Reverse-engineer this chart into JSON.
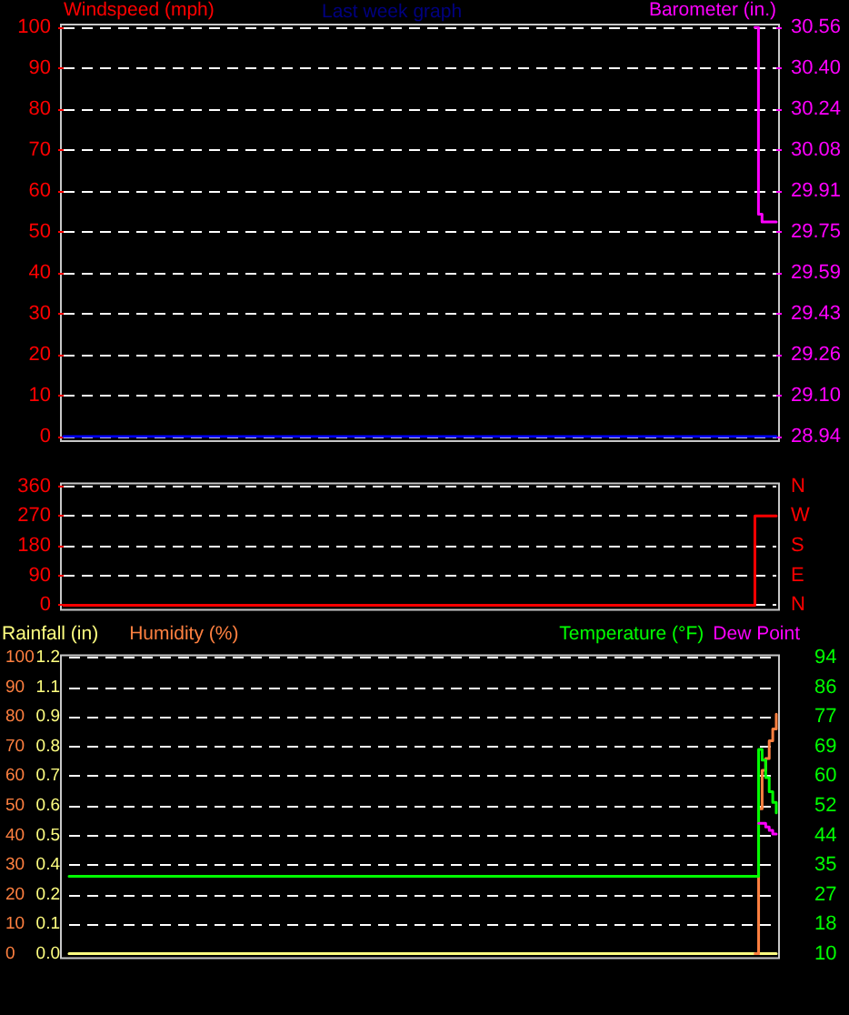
{
  "chart_data": [
    {
      "type": "step",
      "title": "Last week graph",
      "ylabel": "Windspeed (mph)",
      "y2label": "Barometer (in.)",
      "grid": "y",
      "tick_labels": "y",
      "ylim": [
        0,
        100
      ],
      "yticks": [
        0,
        10,
        20,
        30,
        40,
        50,
        60,
        70,
        80,
        90,
        100
      ],
      "y2lim": [
        28.94,
        30.56
      ],
      "y2ticks": [
        28.94,
        {
          "value": 29.102,
          "label": "29.10"
        },
        {
          "value": 29.264,
          "label": "29.26"
        },
        {
          "value": 29.426,
          "label": "29.43"
        },
        {
          "value": 29.588,
          "label": "29.59"
        },
        29.75,
        {
          "value": 29.912,
          "label": "29.91"
        },
        {
          "value": 30.075,
          "label": "30.08"
        },
        {
          "value": 30.236,
          "label": "30.24"
        },
        {
          "value": 30.398,
          "label": "30.40"
        },
        30.56
      ],
      "categories": [
        null,
        null,
        null,
        null,
        null,
        null,
        null,
        null,
        null,
        null,
        null,
        null,
        null,
        null,
        null,
        null,
        null,
        null,
        null,
        null,
        null,
        null,
        null,
        null,
        null,
        null,
        null,
        null,
        null,
        null,
        null,
        null,
        null,
        null,
        null,
        null,
        null,
        null,
        null,
        null,
        null,
        null,
        null,
        null,
        null,
        null,
        null,
        null,
        null,
        null,
        null,
        null,
        null,
        null,
        null,
        null,
        null,
        null,
        null,
        null,
        null,
        null,
        null,
        null,
        null,
        null,
        null,
        null,
        null,
        null,
        null,
        null,
        null,
        null,
        null,
        null,
        null,
        null,
        null,
        null,
        null,
        null,
        null,
        null,
        null,
        null,
        null,
        null,
        null,
        null,
        null,
        null,
        null,
        null,
        null,
        null,
        null,
        null,
        null,
        null,
        null,
        null,
        null,
        null,
        null,
        null,
        null,
        null,
        null,
        null,
        null,
        null,
        null,
        null,
        null,
        null,
        null,
        null,
        null,
        null,
        null,
        null,
        null,
        null,
        null,
        null,
        null,
        null,
        null,
        null,
        null,
        null,
        null,
        null,
        null,
        null,
        null,
        null,
        null,
        null,
        null,
        null,
        null,
        null,
        null,
        null,
        null,
        null,
        null,
        null,
        null,
        null,
        null,
        null,
        null,
        null,
        null,
        null,
        null,
        null,
        null,
        null,
        null,
        null,
        null,
        null,
        null,
        null,
        null,
        null,
        null,
        null,
        null,
        null,
        null,
        null,
        null,
        null,
        null,
        null,
        null,
        null,
        null,
        null,
        null,
        null,
        null,
        null,
        null,
        null,
        null,
        null,
        null,
        null,
        null,
        null,
        null,
        null,
        null,
        null,
        null
      ],
      "series": [
        {
          "color": "#0000ff",
          "values": [
            0,
            0,
            0,
            0,
            0,
            0,
            0,
            0,
            0,
            0,
            0,
            0,
            0,
            0,
            0,
            0,
            0,
            0,
            0,
            0,
            0,
            0,
            0,
            0,
            0,
            0,
            0,
            0,
            0,
            0,
            0,
            0,
            0,
            0,
            0,
            0,
            0,
            0,
            0,
            0,
            0,
            0,
            0,
            0,
            0,
            0,
            0,
            0,
            0,
            0,
            0,
            0,
            0,
            0,
            0,
            0,
            0,
            0,
            0,
            0,
            0,
            0,
            0,
            0,
            0,
            0,
            0,
            0,
            0,
            0,
            0,
            0,
            0,
            0,
            0,
            0,
            0,
            0,
            0,
            0,
            0,
            0,
            0,
            0,
            0,
            0,
            0,
            0,
            0,
            0,
            0,
            0,
            0,
            0,
            0,
            0,
            0,
            0,
            0,
            0,
            0,
            0,
            0,
            0,
            0,
            0,
            0,
            0,
            0,
            0,
            0,
            0,
            0,
            0,
            0,
            0,
            0,
            0,
            0,
            0,
            0,
            0,
            0,
            0,
            0,
            0,
            0,
            0,
            0,
            0,
            0,
            0,
            0,
            0,
            0,
            0,
            0,
            0,
            0,
            0,
            0,
            0,
            0,
            0,
            0,
            0,
            0,
            0,
            0,
            0,
            0,
            0,
            0,
            0,
            0,
            0,
            0,
            0,
            0,
            0,
            0,
            0,
            0,
            0,
            0,
            0,
            0,
            0,
            0,
            0,
            0,
            0,
            0,
            0,
            0,
            0,
            0,
            0,
            0,
            0,
            0,
            0,
            0,
            0,
            0,
            0,
            0,
            0,
            0,
            0,
            0,
            0,
            0,
            0,
            0,
            0,
            0,
            0,
            0,
            0,
            0
          ]
        },
        {
          "color": "#ff00ff",
          "axis": "y2",
          "values": [
            null,
            null,
            null,
            null,
            null,
            null,
            null,
            null,
            null,
            null,
            null,
            null,
            null,
            null,
            null,
            null,
            null,
            null,
            null,
            null,
            null,
            null,
            null,
            null,
            null,
            null,
            null,
            null,
            null,
            null,
            null,
            null,
            null,
            null,
            null,
            null,
            null,
            null,
            null,
            null,
            null,
            null,
            null,
            null,
            null,
            null,
            null,
            null,
            null,
            null,
            null,
            null,
            null,
            null,
            null,
            null,
            null,
            null,
            null,
            null,
            null,
            null,
            null,
            null,
            null,
            null,
            null,
            null,
            null,
            null,
            null,
            null,
            null,
            null,
            null,
            null,
            null,
            null,
            null,
            null,
            null,
            null,
            null,
            null,
            null,
            null,
            null,
            null,
            null,
            null,
            null,
            null,
            null,
            null,
            null,
            null,
            null,
            null,
            null,
            null,
            null,
            null,
            null,
            null,
            null,
            null,
            null,
            null,
            null,
            null,
            null,
            null,
            null,
            null,
            null,
            null,
            null,
            null,
            null,
            null,
            null,
            null,
            null,
            null,
            null,
            null,
            null,
            null,
            null,
            null,
            null,
            null,
            null,
            null,
            null,
            null,
            null,
            null,
            null,
            null,
            null,
            null,
            null,
            null,
            null,
            null,
            null,
            null,
            null,
            null,
            null,
            null,
            null,
            null,
            null,
            null,
            null,
            null,
            null,
            null,
            null,
            null,
            null,
            null,
            null,
            null,
            null,
            null,
            null,
            null,
            null,
            null,
            null,
            null,
            null,
            null,
            null,
            null,
            null,
            null,
            null,
            null,
            null,
            null,
            null,
            null,
            null,
            null,
            null,
            null,
            null,
            null,
            null,
            null,
            30.56,
            29.82,
            29.79,
            29.79,
            29.79,
            29.79,
            29.79
          ]
        }
      ]
    },
    {
      "type": "step",
      "grid": "y",
      "tick_labels": "y",
      "color": "#ff0000",
      "ylim": [
        0,
        360
      ],
      "yticks": [
        0,
        90,
        180,
        270,
        360
      ],
      "y2_categories": [
        "N",
        "W",
        "S",
        "E",
        "N"
      ],
      "categories": [
        null,
        null,
        null,
        null,
        null,
        null,
        null,
        null,
        null,
        null,
        null,
        null,
        null,
        null,
        null,
        null,
        null,
        null,
        null,
        null,
        null,
        null,
        null,
        null,
        null,
        null,
        null,
        null,
        null,
        null,
        null,
        null,
        null,
        null,
        null,
        null,
        null,
        null,
        null,
        null,
        null,
        null,
        null,
        null,
        null,
        null,
        null,
        null,
        null,
        null,
        null,
        null,
        null,
        null,
        null,
        null,
        null,
        null,
        null,
        null,
        null,
        null,
        null,
        null,
        null,
        null,
        null,
        null,
        null,
        null,
        null,
        null,
        null,
        null,
        null,
        null,
        null,
        null,
        null,
        null,
        null,
        null,
        null,
        null,
        null,
        null,
        null,
        null,
        null,
        null,
        null,
        null,
        null,
        null,
        null,
        null,
        null,
        null,
        null,
        null,
        null,
        null,
        null,
        null,
        null,
        null,
        null,
        null,
        null,
        null,
        null,
        null,
        null,
        null,
        null,
        null,
        null,
        null,
        null,
        null,
        null,
        null,
        null,
        null,
        null,
        null,
        null,
        null,
        null,
        null,
        null,
        null,
        null,
        null,
        null,
        null,
        null,
        null,
        null,
        null,
        null,
        null,
        null,
        null,
        null,
        null,
        null,
        null,
        null,
        null,
        null,
        null,
        null,
        null,
        null,
        null,
        null,
        null,
        null,
        null,
        null,
        null,
        null,
        null,
        null,
        null,
        null,
        null,
        null,
        null,
        null,
        null,
        null,
        null,
        null,
        null,
        null,
        null,
        null,
        null,
        null,
        null,
        null,
        null,
        null,
        null,
        null,
        null,
        null,
        null,
        null,
        null,
        null,
        null,
        null,
        null,
        null,
        null,
        null,
        null,
        null
      ],
      "values": [
        0,
        0,
        0,
        0,
        0,
        0,
        0,
        0,
        0,
        0,
        0,
        0,
        0,
        0,
        0,
        0,
        0,
        0,
        0,
        0,
        0,
        0,
        0,
        0,
        0,
        0,
        0,
        0,
        0,
        0,
        0,
        0,
        0,
        0,
        0,
        0,
        0,
        0,
        0,
        0,
        0,
        0,
        0,
        0,
        0,
        0,
        0,
        0,
        0,
        0,
        0,
        0,
        0,
        0,
        0,
        0,
        0,
        0,
        0,
        0,
        0,
        0,
        0,
        0,
        0,
        0,
        0,
        0,
        0,
        0,
        0,
        0,
        0,
        0,
        0,
        0,
        0,
        0,
        0,
        0,
        0,
        0,
        0,
        0,
        0,
        0,
        0,
        0,
        0,
        0,
        0,
        0,
        0,
        0,
        0,
        0,
        0,
        0,
        0,
        0,
        0,
        0,
        0,
        0,
        0,
        0,
        0,
        0,
        0,
        0,
        0,
        0,
        0,
        0,
        0,
        0,
        0,
        0,
        0,
        0,
        0,
        0,
        0,
        0,
        0,
        0,
        0,
        0,
        0,
        0,
        0,
        0,
        0,
        0,
        0,
        0,
        0,
        0,
        0,
        0,
        0,
        0,
        0,
        0,
        0,
        0,
        0,
        0,
        0,
        0,
        0,
        0,
        0,
        0,
        0,
        0,
        0,
        0,
        0,
        0,
        0,
        0,
        0,
        0,
        0,
        0,
        0,
        0,
        0,
        0,
        0,
        0,
        0,
        0,
        0,
        0,
        0,
        0,
        0,
        0,
        0,
        0,
        0,
        0,
        0,
        0,
        0,
        0,
        0,
        0,
        0,
        0,
        0,
        0,
        270,
        270,
        270,
        270,
        270,
        270,
        270
      ]
    },
    {
      "type": "step",
      "grid": "y",
      "tick_labels": "y",
      "legend": "top",
      "ylim": [
        0,
        1.17
      ],
      "yticks": [
        {
          "value": 0,
          "label": "0.0"
        },
        {
          "value": 0.117,
          "label": "0.1"
        },
        {
          "value": 0.234,
          "label": "0.2"
        },
        {
          "value": 0.351,
          "label": "0.4"
        },
        {
          "value": 0.468,
          "label": "0.5"
        },
        {
          "value": 0.585,
          "label": "0.6"
        },
        {
          "value": 0.702,
          "label": "0.7"
        },
        {
          "value": 0.819,
          "label": "0.8"
        },
        {
          "value": 0.936,
          "label": "0.9"
        },
        {
          "value": 1.053,
          "label": "1.1"
        },
        {
          "value": 1.17,
          "label": "1.2"
        }
      ],
      "y3lim": [
        0,
        100
      ],
      "y3ticks": [
        0,
        10,
        20,
        30,
        40,
        50,
        60,
        70,
        80,
        90,
        100
      ],
      "y2lim": [
        10,
        94
      ],
      "y2ticks": [
        10,
        {
          "value": 18.4,
          "label": "18"
        },
        {
          "value": 26.8,
          "label": "27"
        },
        {
          "value": 35.2,
          "label": "35"
        },
        {
          "value": 43.6,
          "label": "44"
        },
        52,
        {
          "value": 60.4,
          "label": "60"
        },
        {
          "value": 68.8,
          "label": "69"
        },
        {
          "value": 77.2,
          "label": "77"
        },
        {
          "value": 85.6,
          "label": "86"
        },
        94
      ],
      "categories": [
        null,
        null,
        null,
        null,
        null,
        null,
        null,
        null,
        null,
        null,
        null,
        null,
        null,
        null,
        null,
        null,
        null,
        null,
        null,
        null,
        null,
        null,
        null,
        null,
        null,
        null,
        null,
        null,
        null,
        null,
        null,
        null,
        null,
        null,
        null,
        null,
        null,
        null,
        null,
        null,
        null,
        null,
        null,
        null,
        null,
        null,
        null,
        null,
        null,
        null,
        null,
        null,
        null,
        null,
        null,
        null,
        null,
        null,
        null,
        null,
        null,
        null,
        null,
        null,
        null,
        null,
        null,
        null,
        null,
        null,
        null,
        null,
        null,
        null,
        null,
        null,
        null,
        null,
        null,
        null,
        null,
        null,
        null,
        null,
        null,
        null,
        null,
        null,
        null,
        null,
        null,
        null,
        null,
        null,
        null,
        null,
        null,
        null,
        null,
        null,
        null,
        null,
        null,
        null,
        null,
        null,
        null,
        null,
        null,
        null,
        null,
        null,
        null,
        null,
        null,
        null,
        null,
        null,
        null,
        null,
        null,
        null,
        null,
        null,
        null,
        null,
        null,
        null,
        null,
        null,
        null,
        null,
        null,
        null,
        null,
        null,
        null,
        null,
        null,
        null,
        null,
        null,
        null,
        null,
        null,
        null,
        null,
        null,
        null,
        null,
        null,
        null,
        null,
        null,
        null,
        null,
        null,
        null,
        null,
        null,
        null,
        null,
        null,
        null,
        null,
        null,
        null,
        null,
        null,
        null,
        null,
        null,
        null,
        null,
        null,
        null,
        null,
        null,
        null,
        null,
        null,
        null,
        null,
        null,
        null,
        null,
        null,
        null,
        null,
        null,
        null,
        null,
        null,
        null,
        null,
        null,
        null,
        null,
        null,
        null,
        null
      ],
      "series": [
        {
          "name": "Rainfall (in)",
          "color": "#ffff80",
          "values": [
            0,
            0,
            0,
            0,
            0,
            0,
            0,
            0,
            0,
            0,
            0,
            0,
            0,
            0,
            0,
            0,
            0,
            0,
            0,
            0,
            0,
            0,
            0,
            0,
            0,
            0,
            0,
            0,
            0,
            0,
            0,
            0,
            0,
            0,
            0,
            0,
            0,
            0,
            0,
            0,
            0,
            0,
            0,
            0,
            0,
            0,
            0,
            0,
            0,
            0,
            0,
            0,
            0,
            0,
            0,
            0,
            0,
            0,
            0,
            0,
            0,
            0,
            0,
            0,
            0,
            0,
            0,
            0,
            0,
            0,
            0,
            0,
            0,
            0,
            0,
            0,
            0,
            0,
            0,
            0,
            0,
            0,
            0,
            0,
            0,
            0,
            0,
            0,
            0,
            0,
            0,
            0,
            0,
            0,
            0,
            0,
            0,
            0,
            0,
            0,
            0,
            0,
            0,
            0,
            0,
            0,
            0,
            0,
            0,
            0,
            0,
            0,
            0,
            0,
            0,
            0,
            0,
            0,
            0,
            0,
            0,
            0,
            0,
            0,
            0,
            0,
            0,
            0,
            0,
            0,
            0,
            0,
            0,
            0,
            0,
            0,
            0,
            0,
            0,
            0,
            0,
            0,
            0,
            0,
            0,
            0,
            0,
            0,
            0,
            0,
            0,
            0,
            0,
            0,
            0,
            0,
            0,
            0,
            0,
            0,
            0,
            0,
            0,
            0,
            0,
            0,
            0,
            0,
            0,
            0,
            0,
            0,
            0,
            0,
            0,
            0,
            0,
            0,
            0,
            0,
            0,
            0,
            0,
            0,
            0,
            0,
            0,
            0,
            0,
            0,
            0,
            0,
            0,
            0,
            0,
            0,
            0,
            0,
            0,
            0,
            0
          ]
        },
        {
          "name": "Humidity (%)",
          "color": "#ff8040",
          "axis": "y3",
          "values": [
            null,
            null,
            null,
            null,
            null,
            null,
            null,
            null,
            null,
            null,
            null,
            null,
            null,
            null,
            null,
            null,
            null,
            null,
            null,
            null,
            null,
            null,
            null,
            null,
            null,
            null,
            null,
            null,
            null,
            null,
            null,
            null,
            null,
            null,
            null,
            null,
            null,
            null,
            null,
            null,
            null,
            null,
            null,
            null,
            null,
            null,
            null,
            null,
            null,
            null,
            null,
            null,
            null,
            null,
            null,
            null,
            null,
            null,
            null,
            null,
            null,
            null,
            null,
            null,
            null,
            null,
            null,
            null,
            null,
            null,
            null,
            null,
            null,
            null,
            null,
            null,
            null,
            null,
            null,
            null,
            null,
            null,
            null,
            null,
            null,
            null,
            null,
            null,
            null,
            null,
            null,
            null,
            null,
            null,
            null,
            null,
            null,
            null,
            null,
            null,
            null,
            null,
            null,
            null,
            null,
            null,
            null,
            null,
            null,
            null,
            null,
            null,
            null,
            null,
            null,
            null,
            null,
            null,
            null,
            null,
            null,
            null,
            null,
            null,
            null,
            null,
            null,
            null,
            null,
            null,
            null,
            null,
            null,
            null,
            null,
            null,
            null,
            null,
            null,
            null,
            null,
            null,
            null,
            null,
            null,
            null,
            null,
            null,
            null,
            null,
            null,
            null,
            null,
            null,
            null,
            null,
            null,
            null,
            null,
            null,
            null,
            null,
            null,
            null,
            null,
            null,
            null,
            null,
            null,
            null,
            null,
            null,
            null,
            null,
            null,
            null,
            null,
            null,
            null,
            null,
            null,
            null,
            null,
            null,
            null,
            null,
            null,
            null,
            null,
            null,
            null,
            null,
            null,
            null,
            0,
            49,
            62,
            66,
            72,
            76,
            81
          ]
        },
        {
          "name": "Temperature (°F)",
          "color": "#00ff00",
          "axis": "y2",
          "values": [
            32,
            32,
            32,
            32,
            32,
            32,
            32,
            32,
            32,
            32,
            32,
            32,
            32,
            32,
            32,
            32,
            32,
            32,
            32,
            32,
            32,
            32,
            32,
            32,
            32,
            32,
            32,
            32,
            32,
            32,
            32,
            32,
            32,
            32,
            32,
            32,
            32,
            32,
            32,
            32,
            32,
            32,
            32,
            32,
            32,
            32,
            32,
            32,
            32,
            32,
            32,
            32,
            32,
            32,
            32,
            32,
            32,
            32,
            32,
            32,
            32,
            32,
            32,
            32,
            32,
            32,
            32,
            32,
            32,
            32,
            32,
            32,
            32,
            32,
            32,
            32,
            32,
            32,
            32,
            32,
            32,
            32,
            32,
            32,
            32,
            32,
            32,
            32,
            32,
            32,
            32,
            32,
            32,
            32,
            32,
            32,
            32,
            32,
            32,
            32,
            32,
            32,
            32,
            32,
            32,
            32,
            32,
            32,
            32,
            32,
            32,
            32,
            32,
            32,
            32,
            32,
            32,
            32,
            32,
            32,
            32,
            32,
            32,
            32,
            32,
            32,
            32,
            32,
            32,
            32,
            32,
            32,
            32,
            32,
            32,
            32,
            32,
            32,
            32,
            32,
            32,
            32,
            32,
            32,
            32,
            32,
            32,
            32,
            32,
            32,
            32,
            32,
            32,
            32,
            32,
            32,
            32,
            32,
            32,
            32,
            32,
            32,
            32,
            32,
            32,
            32,
            32,
            32,
            32,
            32,
            32,
            32,
            32,
            32,
            32,
            32,
            32,
            32,
            32,
            32,
            32,
            32,
            32,
            32,
            32,
            32,
            32,
            32,
            32,
            32,
            32,
            32,
            32,
            32,
            32,
            68,
            65,
            60,
            56,
            53,
            50
          ]
        },
        {
          "name": "Dew Point",
          "color": "#ff00ff",
          "axis": "y2",
          "values": [
            null,
            null,
            null,
            null,
            null,
            null,
            null,
            null,
            null,
            null,
            null,
            null,
            null,
            null,
            null,
            null,
            null,
            null,
            null,
            null,
            null,
            null,
            null,
            null,
            null,
            null,
            null,
            null,
            null,
            null,
            null,
            null,
            null,
            null,
            null,
            null,
            null,
            null,
            null,
            null,
            null,
            null,
            null,
            null,
            null,
            null,
            null,
            null,
            null,
            null,
            null,
            null,
            null,
            null,
            null,
            null,
            null,
            null,
            null,
            null,
            null,
            null,
            null,
            null,
            null,
            null,
            null,
            null,
            null,
            null,
            null,
            null,
            null,
            null,
            null,
            null,
            null,
            null,
            null,
            null,
            null,
            null,
            null,
            null,
            null,
            null,
            null,
            null,
            null,
            null,
            null,
            null,
            null,
            null,
            null,
            null,
            null,
            null,
            null,
            null,
            null,
            null,
            null,
            null,
            null,
            null,
            null,
            null,
            null,
            null,
            null,
            null,
            null,
            null,
            null,
            null,
            null,
            null,
            null,
            null,
            null,
            null,
            null,
            null,
            null,
            null,
            null,
            null,
            null,
            null,
            null,
            null,
            null,
            null,
            null,
            null,
            null,
            null,
            null,
            null,
            null,
            null,
            null,
            null,
            null,
            null,
            null,
            null,
            null,
            null,
            null,
            null,
            null,
            null,
            null,
            null,
            null,
            null,
            null,
            null,
            null,
            null,
            null,
            null,
            null,
            null,
            null,
            null,
            null,
            null,
            null,
            null,
            null,
            null,
            null,
            null,
            null,
            null,
            null,
            null,
            null,
            null,
            null,
            null,
            null,
            null,
            null,
            null,
            null,
            null,
            null,
            null,
            null,
            null,
            null,
            47,
            47,
            46,
            45,
            44,
            44
          ]
        }
      ]
    }
  ]
}
